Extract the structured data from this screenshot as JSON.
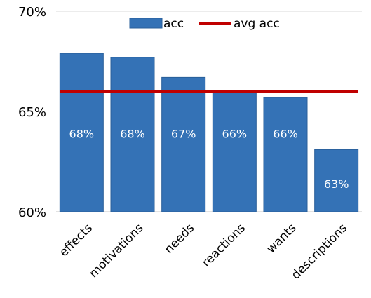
{
  "chart_data": {
    "type": "bar",
    "categories": [
      "effects",
      "motivations",
      "needs",
      "reactions",
      "wants",
      "descriptions"
    ],
    "series": [
      {
        "name": "acc",
        "type": "bar",
        "values": [
          67.9,
          67.7,
          66.7,
          65.95,
          65.7,
          63.1
        ],
        "labels": [
          "68%",
          "68%",
          "67%",
          "66%",
          "66%",
          "63%"
        ]
      },
      {
        "name": "avg acc",
        "type": "line",
        "value": 66.0
      }
    ],
    "title": "",
    "xlabel": "",
    "ylabel": "",
    "ylim": [
      60,
      70
    ],
    "yticks": [
      60,
      65,
      70
    ],
    "ytick_labels": [
      "60%",
      "65%",
      "70%"
    ],
    "grid": false,
    "legend": "top-center"
  },
  "colors": {
    "bar": "#3472b6",
    "bar_edge": "#2a5f99",
    "avg_line": "#c00000",
    "axis": "#d9d9d9"
  }
}
